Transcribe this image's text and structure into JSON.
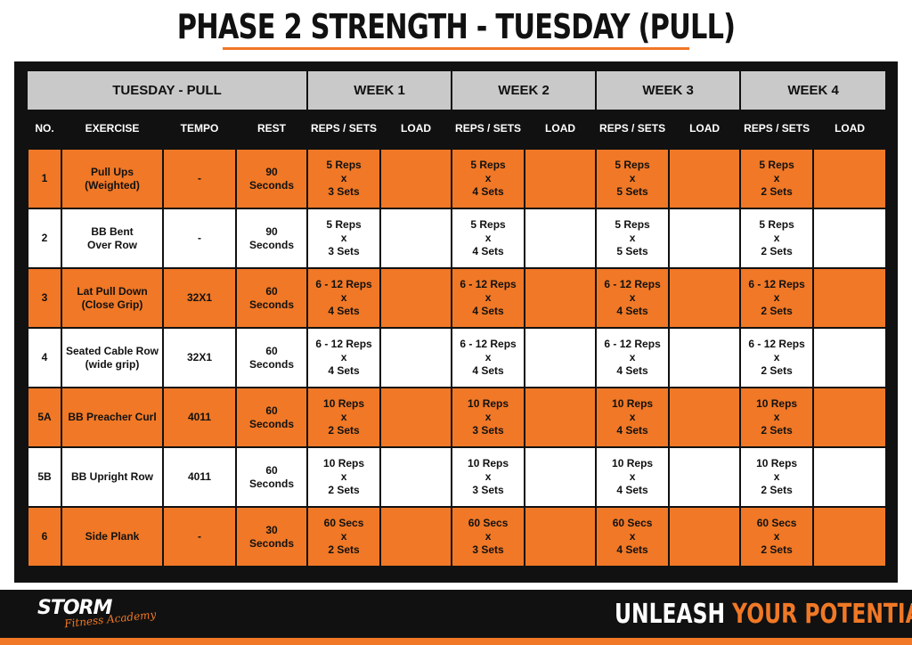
{
  "title": "PHASE 2 STRENGTH - TUESDAY (PULL)",
  "table": {
    "group_header": "TUESDAY - PULL",
    "weeks": [
      "WEEK 1",
      "WEEK 2",
      "WEEK 3",
      "WEEK 4"
    ],
    "columns": {
      "no": "NO.",
      "exercise": "EXERCISE",
      "tempo": "TEMPO",
      "rest": "REST",
      "reps_sets": "REPS / SETS",
      "load": "LOAD"
    },
    "rows": [
      {
        "no": "1",
        "ex1": "Pull Ups",
        "ex2": "(Weighted)",
        "tempo": "-",
        "rest1": "90",
        "rest2": "Seconds",
        "w": [
          [
            "5 Reps",
            "x",
            "3 Sets"
          ],
          [
            "5 Reps",
            "x",
            "4 Sets"
          ],
          [
            "5 Reps",
            "x",
            "5 Sets"
          ],
          [
            "5 Reps",
            "x",
            "2 Sets"
          ]
        ]
      },
      {
        "no": "2",
        "ex1": "BB Bent",
        "ex2": "Over Row",
        "tempo": "-",
        "rest1": "90",
        "rest2": "Seconds",
        "w": [
          [
            "5 Reps",
            "x",
            "3 Sets"
          ],
          [
            "5 Reps",
            "x",
            "4 Sets"
          ],
          [
            "5 Reps",
            "x",
            "5 Sets"
          ],
          [
            "5 Reps",
            "x",
            "2 Sets"
          ]
        ]
      },
      {
        "no": "3",
        "ex1": "Lat Pull Down",
        "ex2": "(Close Grip)",
        "tempo": "32X1",
        "rest1": "60",
        "rest2": "Seconds",
        "w": [
          [
            "6 - 12 Reps",
            "x",
            "4 Sets"
          ],
          [
            "6 - 12 Reps",
            "x",
            "4 Sets"
          ],
          [
            "6 - 12 Reps",
            "x",
            "4 Sets"
          ],
          [
            "6 - 12 Reps",
            "x",
            "2 Sets"
          ]
        ]
      },
      {
        "no": "4",
        "ex1": "Seated Cable Row",
        "ex2": "(wide grip)",
        "tempo": "32X1",
        "rest1": "60",
        "rest2": "Seconds",
        "w": [
          [
            "6 - 12 Reps",
            "x",
            "4 Sets"
          ],
          [
            "6 - 12 Reps",
            "x",
            "4 Sets"
          ],
          [
            "6 - 12 Reps",
            "x",
            "4 Sets"
          ],
          [
            "6 - 12 Reps",
            "x",
            "2 Sets"
          ]
        ]
      },
      {
        "no": "5A",
        "ex1": "BB Preacher Curl",
        "ex2": "",
        "tempo": "4011",
        "rest1": "60",
        "rest2": "Seconds",
        "w": [
          [
            "10 Reps",
            "x",
            "2 Sets"
          ],
          [
            "10 Reps",
            "x",
            "3 Sets"
          ],
          [
            "10 Reps",
            "x",
            "4 Sets"
          ],
          [
            "10 Reps",
            "x",
            "2 Sets"
          ]
        ]
      },
      {
        "no": "5B",
        "ex1": "BB Upright Row",
        "ex2": "",
        "tempo": "4011",
        "rest1": "60",
        "rest2": "Seconds",
        "w": [
          [
            "10 Reps",
            "x",
            "2 Sets"
          ],
          [
            "10 Reps",
            "x",
            "3 Sets"
          ],
          [
            "10 Reps",
            "x",
            "4 Sets"
          ],
          [
            "10 Reps",
            "x",
            "2 Sets"
          ]
        ]
      },
      {
        "no": "6",
        "ex1": "Side Plank",
        "ex2": "",
        "tempo": "-",
        "rest1": "30",
        "rest2": "Seconds",
        "w": [
          [
            "60 Secs",
            "x",
            "2 Sets"
          ],
          [
            "60 Secs",
            "x",
            "3 Sets"
          ],
          [
            "60 Secs",
            "x",
            "4 Sets"
          ],
          [
            "60 Secs",
            "x",
            "2 Sets"
          ]
        ]
      }
    ]
  },
  "footer": {
    "logo_main": "STORM",
    "logo_sub": "Fitness Academy",
    "tagline_a": "UNLEASH ",
    "tagline_b": "YOUR POTENTIAL"
  },
  "colors": {
    "accent": "#f07826",
    "dark": "#111111",
    "header_gray": "#c9c9c9"
  }
}
